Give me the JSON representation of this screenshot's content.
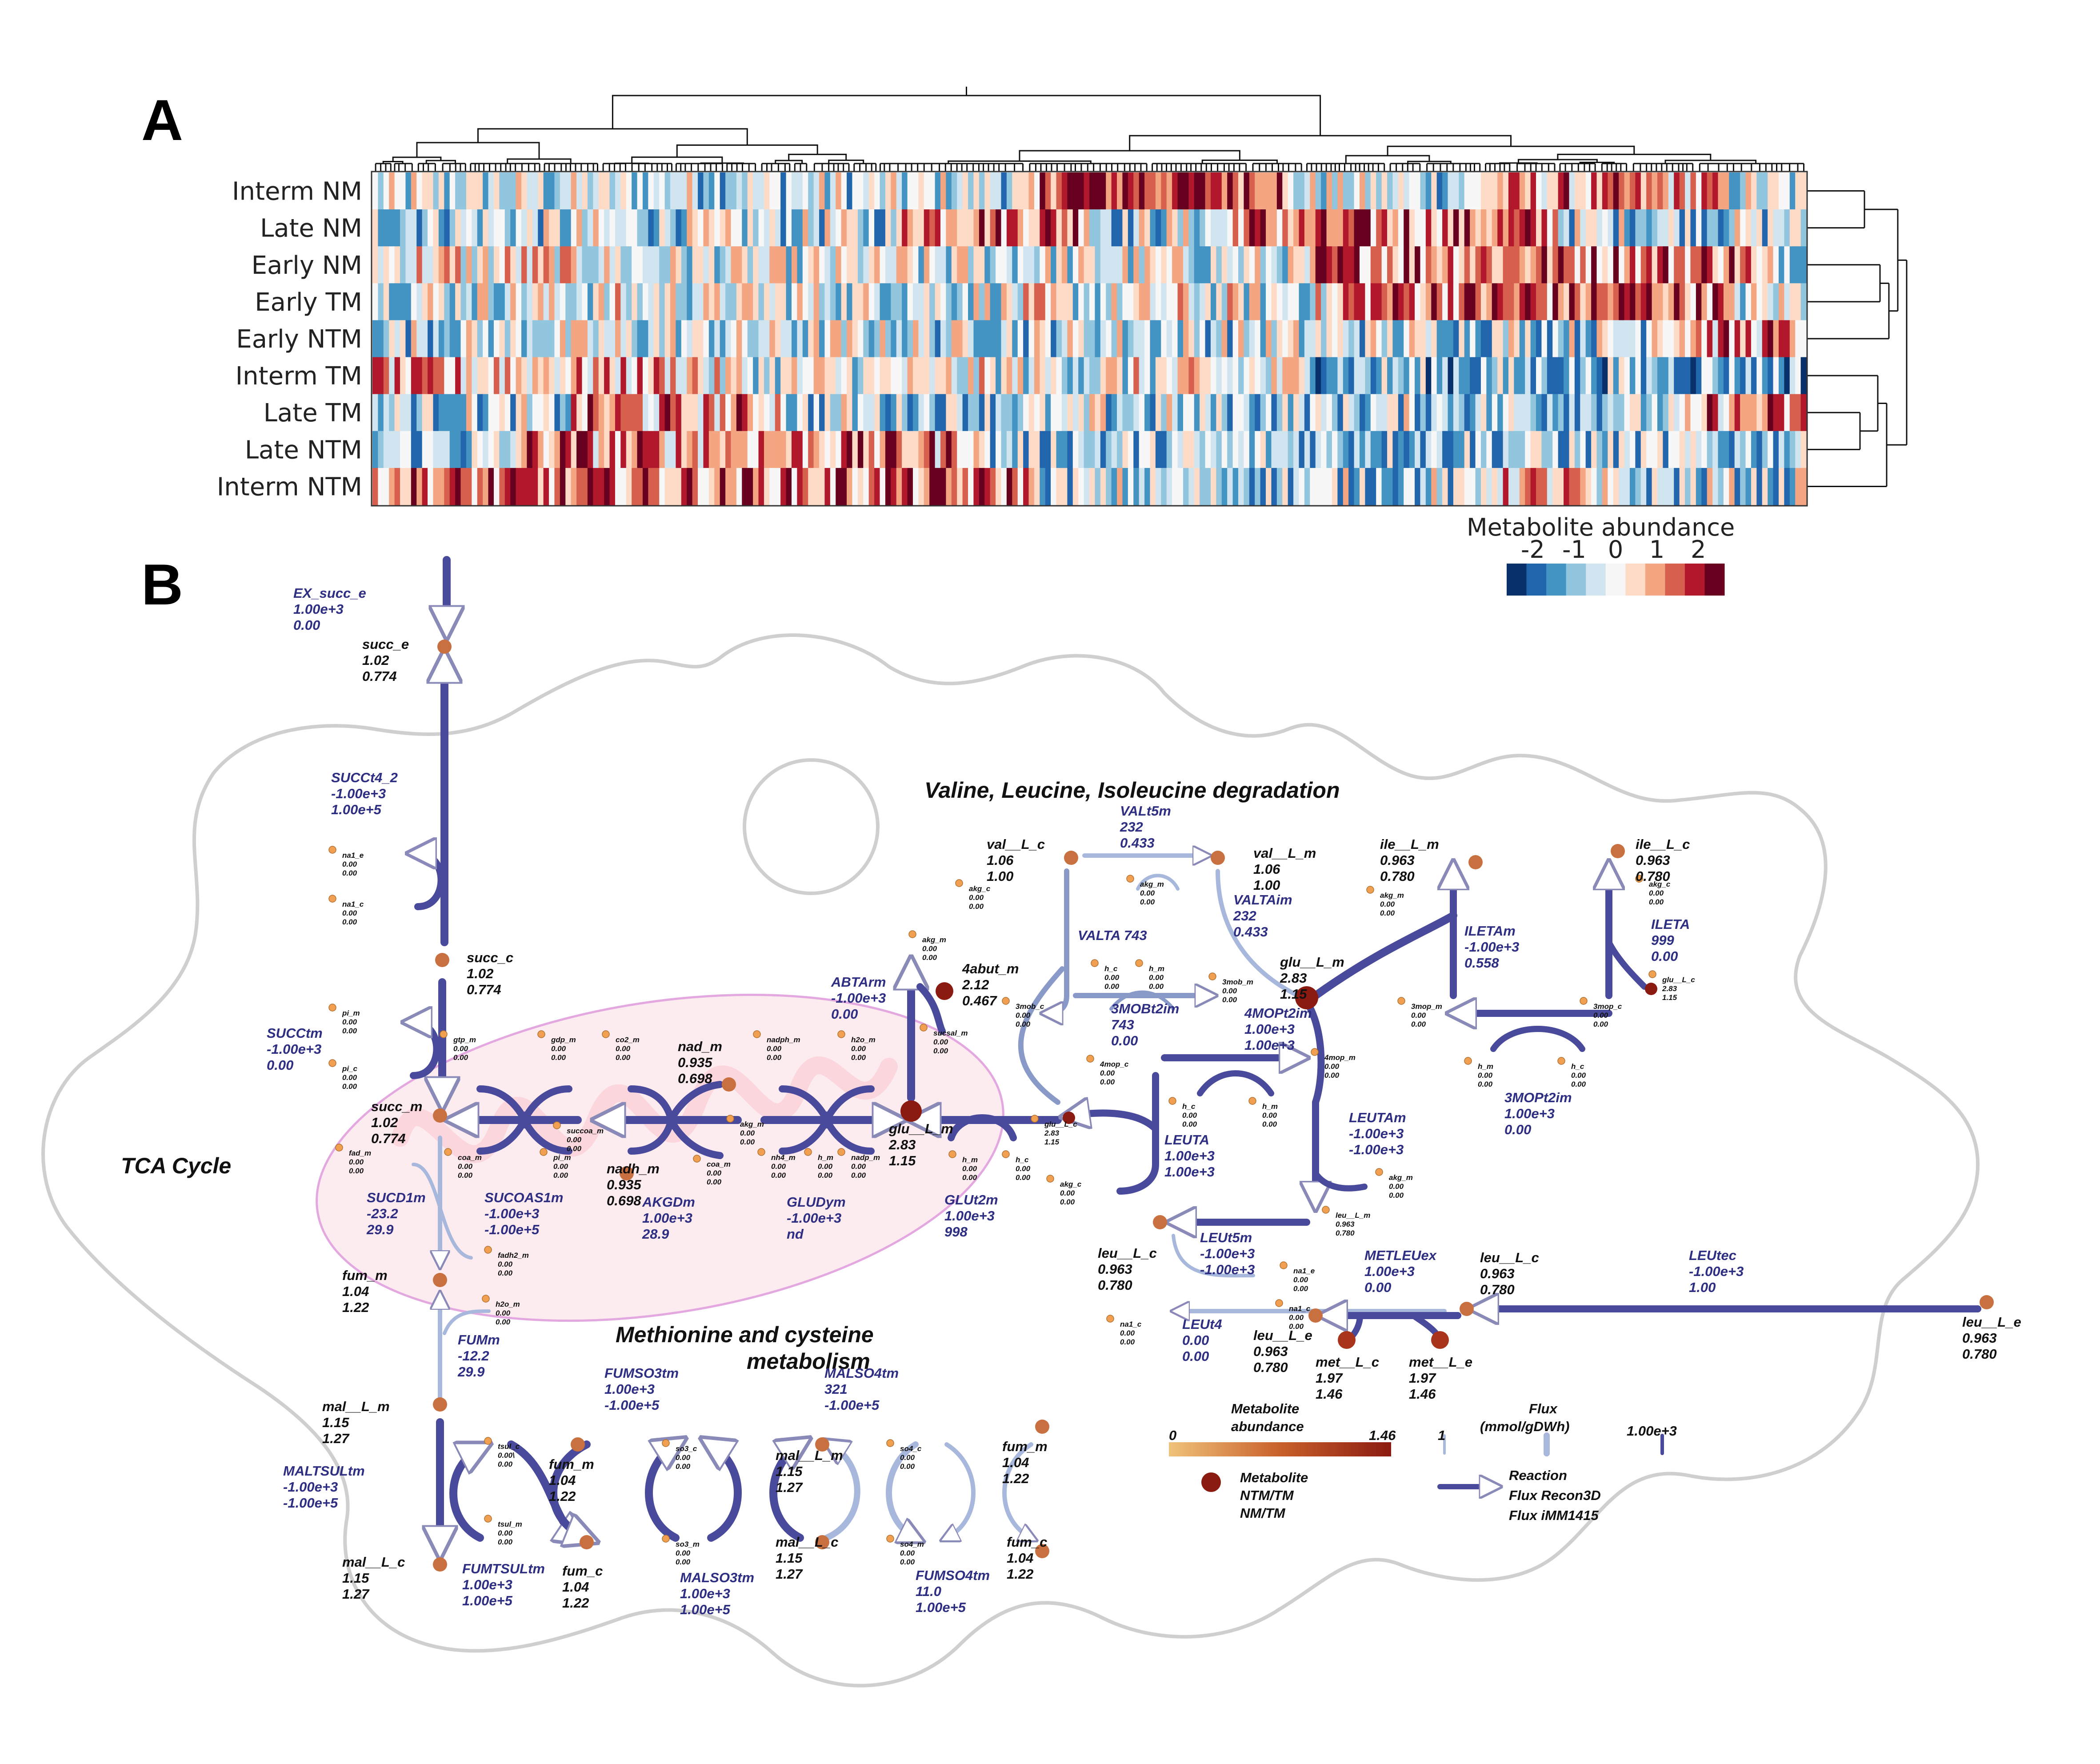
{
  "panels": {
    "a": "A",
    "b": "B"
  },
  "heatmap": {
    "rows": [
      "Interm NM",
      "Late NM",
      "Early NM",
      "Early TM",
      "Early NTM",
      "Interm TM",
      "Late TM",
      "Late NTM",
      "Interm NTM"
    ],
    "legend_title": "Metabolite abundance",
    "legend_ticks": [
      "-2",
      "-1",
      "0",
      "1",
      "2"
    ],
    "legend_colors": [
      "#08306b",
      "#2166ac",
      "#4393c3",
      "#92c5de",
      "#d1e5f0",
      "#f7f7f7",
      "#fddbc7",
      "#f4a582",
      "#d6604d",
      "#b2182b",
      "#67001f"
    ],
    "color_scale": {
      "min": -2,
      "max": 2
    }
  },
  "sections": {
    "bcaa": "Valine, Leucine, Isoleucine degradation",
    "tca": "TCA Cycle",
    "met_cys_1": "Methionine and cysteine",
    "met_cys_2": "metabolism"
  },
  "diagram": {
    "colors": {
      "flux": "#4a4a9c",
      "flux_light": "#a8b8dc",
      "node": "#c87040",
      "node_dark": "#8b1a10",
      "small": "#f0a050",
      "membrane": "#cccccc",
      "mito_fill": "#fde8ec",
      "mito_stroke": "#e4a8e0"
    },
    "metabolites": {
      "succ_e": [
        "succ_e",
        "1.02",
        "0.774"
      ],
      "succ_c": [
        "succ_c",
        "1.02",
        "0.774"
      ],
      "succ_m": [
        "succ_m",
        "1.02",
        "0.774"
      ],
      "fum_m": [
        "fum_m",
        "1.04",
        "1.22"
      ],
      "mal_L_m": [
        "mal__L_m",
        "1.15",
        "1.27"
      ],
      "mal_L_c": [
        "mal__L_c",
        "1.15",
        "1.27"
      ],
      "nad_m": [
        "nad_m",
        "0.935",
        "0.698"
      ],
      "nadh_m": [
        "nadh_m",
        "0.935",
        "0.698"
      ],
      "abut": [
        "4abut_m",
        "2.12",
        "0.467"
      ],
      "glu_L_m": [
        "glu__L_m",
        "2.83",
        "1.15"
      ],
      "glu_L_m2": [
        "glu__L_m",
        "2.83",
        "1.15"
      ],
      "val_L_c": [
        "val__L_c",
        "1.06",
        "1.00"
      ],
      "val_L_m": [
        "val__L_m",
        "1.06",
        "1.00"
      ],
      "ile_L_m": [
        "ile__L_m",
        "0.963",
        "0.780"
      ],
      "ile_L_c": [
        "ile__L_c",
        "0.963",
        "0.780"
      ],
      "leu_L_c": [
        "leu__L_c",
        "0.963",
        "0.780"
      ],
      "leu_L_c2": [
        "leu__L_c",
        "0.963",
        "0.780"
      ],
      "leu_L_e": [
        "leu__L_e",
        "0.963",
        "0.780"
      ],
      "leu_L_e2": [
        "leu__L_e",
        "0.963",
        "0.780"
      ],
      "met_L_c": [
        "met__L_c",
        "1.97",
        "1.46"
      ],
      "met_L_e": [
        "met__L_e",
        "1.97",
        "1.46"
      ],
      "fum_m2": [
        "fum_m",
        "1.04",
        "1.22"
      ],
      "fum_c": [
        "fum_c",
        "1.04",
        "1.22"
      ],
      "mal_L_m2": [
        "mal__L_m",
        "1.15",
        "1.27"
      ],
      "mal_L_c2": [
        "mal__L_c",
        "1.15",
        "1.27"
      ],
      "fum_m3": [
        "fum_m",
        "1.04",
        "1.22"
      ],
      "fum_c2": [
        "fum_c",
        "1.04",
        "1.22"
      ]
    },
    "reactions": {
      "EX_succ_e": [
        "EX_succ_e",
        "1.00e+3",
        "0.00"
      ],
      "SUCCt4_2": [
        "SUCCt4_2",
        "-1.00e+3",
        "1.00e+5"
      ],
      "SUCCtm": [
        "SUCCtm",
        "-1.00e+3",
        "0.00"
      ],
      "SUCD1m": [
        "SUCD1m",
        "-23.2",
        "29.9"
      ],
      "SUCOAS1m": [
        "SUCOAS1m",
        "-1.00e+3",
        "-1.00e+5"
      ],
      "AKGDm": [
        "AKGDm",
        "1.00e+3",
        "28.9"
      ],
      "GLUDym": [
        "GLUDym",
        "-1.00e+3",
        "nd"
      ],
      "ABTArm": [
        "ABTArm",
        "-1.00e+3",
        "0.00"
      ],
      "GLUt2m": [
        "GLUt2m",
        "1.00e+3",
        "998"
      ],
      "FUMm": [
        "FUMm",
        "-12.2",
        "29.9"
      ],
      "MALTSULtm": [
        "MALTSULtm",
        "-1.00e+3",
        "-1.00e+5"
      ],
      "FUMTSULtm": [
        "FUMTSULtm",
        "1.00e+3",
        "1.00e+5"
      ],
      "FUMSO3tm": [
        "FUMSO3tm",
        "1.00e+3",
        "-1.00e+5"
      ],
      "MALSO3tm": [
        "MALSO3tm",
        "1.00e+3",
        "1.00e+5"
      ],
      "MALSO4tm": [
        "MALSO4tm",
        "321",
        "-1.00e+5"
      ],
      "FUMSO4tm": [
        "FUMSO4tm",
        "11.0",
        "1.00e+5"
      ],
      "VALt5m": [
        "VALt5m",
        "232",
        "0.433"
      ],
      "VALTAim": [
        "VALTAim",
        "232",
        "0.433"
      ],
      "VALTA": [
        "VALTA 743",
        "",
        ""
      ],
      "3MOBt2im": [
        "3MOBt2im",
        "743",
        "0.00"
      ],
      "4MOPt2im": [
        "4MOPt2im",
        "1.00e+3",
        "1.00e+3"
      ],
      "ILETAm": [
        "ILETAm",
        "-1.00e+3",
        "0.558"
      ],
      "ILETA": [
        "ILETA",
        "999",
        "0.00"
      ],
      "3MOPt2im": [
        "3MOPt2im",
        "1.00e+3",
        "0.00"
      ],
      "LEUTA": [
        "LEUTA",
        "1.00e+3",
        "1.00e+3"
      ],
      "LEUTAm": [
        "LEUTAm",
        "-1.00e+3",
        "-1.00e+3"
      ],
      "LEUt5m": [
        "LEUt5m",
        "-1.00e+3",
        "-1.00e+3"
      ],
      "METLEUex": [
        "METLEUex",
        "1.00e+3",
        "0.00"
      ],
      "LEUtec": [
        "LEUtec",
        "-1.00e+3",
        "1.00"
      ],
      "LEUt4": [
        "LEUt4",
        "0.00",
        "0.00"
      ]
    },
    "cofactors": {
      "na1_e": [
        "na1_e",
        "0.00",
        "0.00"
      ],
      "na1_c": [
        "na1_c",
        "0.00",
        "0.00"
      ],
      "pi_m": [
        "pi_m",
        "0.00",
        "0.00"
      ],
      "pi_c": [
        "pi_c",
        "0.00",
        "0.00"
      ],
      "gtp_m": [
        "gtp_m",
        "0.00",
        "0.00"
      ],
      "gdp_m": [
        "gdp_m",
        "0.00",
        "0.00"
      ],
      "co2_m": [
        "co2_m",
        "0.00",
        "0.00"
      ],
      "nadph_m": [
        "nadph_m",
        "0.00",
        "0.00"
      ],
      "h2o_m": [
        "h2o_m",
        "0.00",
        "0.00"
      ],
      "akg_m1": [
        "akg_m",
        "0.00",
        "0.00"
      ],
      "sucsal_m": [
        "sucsal_m",
        "0.00",
        "0.00"
      ],
      "succoa_m": [
        "succoa_m",
        "0.00",
        "0.00"
      ],
      "pi_m2": [
        "pi_m",
        "0.00",
        "0.00"
      ],
      "coa_m": [
        "coa_m",
        "0.00",
        "0.00"
      ],
      "coa_m2": [
        "coa_m",
        "0.00",
        "0.00"
      ],
      "akg_m2": [
        "akg_m",
        "0.00",
        "0.00"
      ],
      "nh4_m": [
        "nh4_m",
        "0.00",
        "0.00"
      ],
      "h_m1": [
        "h_m",
        "0.00",
        "0.00"
      ],
      "nadp_m": [
        "nadp_m",
        "0.00",
        "0.00"
      ],
      "h_m2": [
        "h_m",
        "0.00",
        "0.00"
      ],
      "h_c1": [
        "h_c",
        "0.00",
        "0.00"
      ],
      "fad_m": [
        "fad_m",
        "0.00",
        "0.00"
      ],
      "fadh2_m": [
        "fadh2_m",
        "0.00",
        "0.00"
      ],
      "h2o_m2": [
        "h2o_m",
        "0.00",
        "0.00"
      ],
      "akg_c1": [
        "akg_c",
        "0.00",
        "0.00"
      ],
      "akg_m3": [
        "akg_m",
        "0.00",
        "0.00"
      ],
      "3mob_c": [
        "3mob_c",
        "0.00",
        "0.00"
      ],
      "h_c2": [
        "h_c",
        "0.00",
        "0.00"
      ],
      "h_m3": [
        "h_m",
        "0.00",
        "0.00"
      ],
      "3mob_m": [
        "3mob_m",
        "0.00",
        "0.00"
      ],
      "akg_m4": [
        "akg_m",
        "0.00",
        "0.00"
      ],
      "akg_c2": [
        "akg_c",
        "0.00",
        "0.00"
      ],
      "3mop_m": [
        "3mop_m",
        "0.00",
        "0.00"
      ],
      "3mop_c": [
        "3mop_c",
        "0.00",
        "0.00"
      ],
      "h_m4": [
        "h_m",
        "0.00",
        "0.00"
      ],
      "h_c3": [
        "h_c",
        "0.00",
        "0.00"
      ],
      "4mop_c": [
        "4mop_c",
        "0.00",
        "0.00"
      ],
      "4mop_m": [
        "4mop_m",
        "0.00",
        "0.00"
      ],
      "h_c4": [
        "h_c",
        "0.00",
        "0.00"
      ],
      "h_m5": [
        "h_m",
        "0.00",
        "0.00"
      ],
      "akg_m5": [
        "akg_m",
        "0.00",
        "0.00"
      ],
      "leu_L_m": [
        "leu__L_m",
        "0.963",
        "0.780"
      ],
      "akg_c3": [
        "akg_c",
        "0.00",
        "0.00"
      ],
      "na1_e2": [
        "na1_e",
        "0.00",
        "0.00"
      ],
      "na1_c2": [
        "na1_c",
        "0.00",
        "0.00"
      ],
      "na1_c3": [
        "na1_c",
        "0.00",
        "0.00"
      ],
      "glu_L_c": [
        "glu__L_c",
        "2.83",
        "1.15"
      ],
      "glu_L_c2": [
        "glu__L_c",
        "2.83",
        "1.15"
      ],
      "tsul_c": [
        "tsul_c",
        "0.00\\",
        "0.00"
      ],
      "tsul_m": [
        "tsul_m",
        "0.00",
        "0.00"
      ],
      "so3_c": [
        "so3_c",
        "0.00",
        "0.00"
      ],
      "so3_m": [
        "so3_m",
        "0.00",
        "0.00"
      ],
      "so4_c": [
        "so4_c",
        "0.00",
        "0.00"
      ],
      "so4_m": [
        "so4_m",
        "0.00",
        "0.00"
      ]
    },
    "legend": {
      "metabolite_title": "Metabolite",
      "metabolite_title2": "abundance",
      "scale_min": "0",
      "scale_max": "1.46",
      "flux_title": "Flux",
      "flux_units": "(mmol/gDWh)",
      "flux_min": "1",
      "flux_max": "1.00e+3",
      "metabolite_label": "Metabolite",
      "ratio1": "NTM/TM",
      "ratio2": "NM/TM",
      "reaction_label": "Reaction",
      "flux1": "Flux Recon3D",
      "flux2": "Flux iMM1415"
    }
  }
}
